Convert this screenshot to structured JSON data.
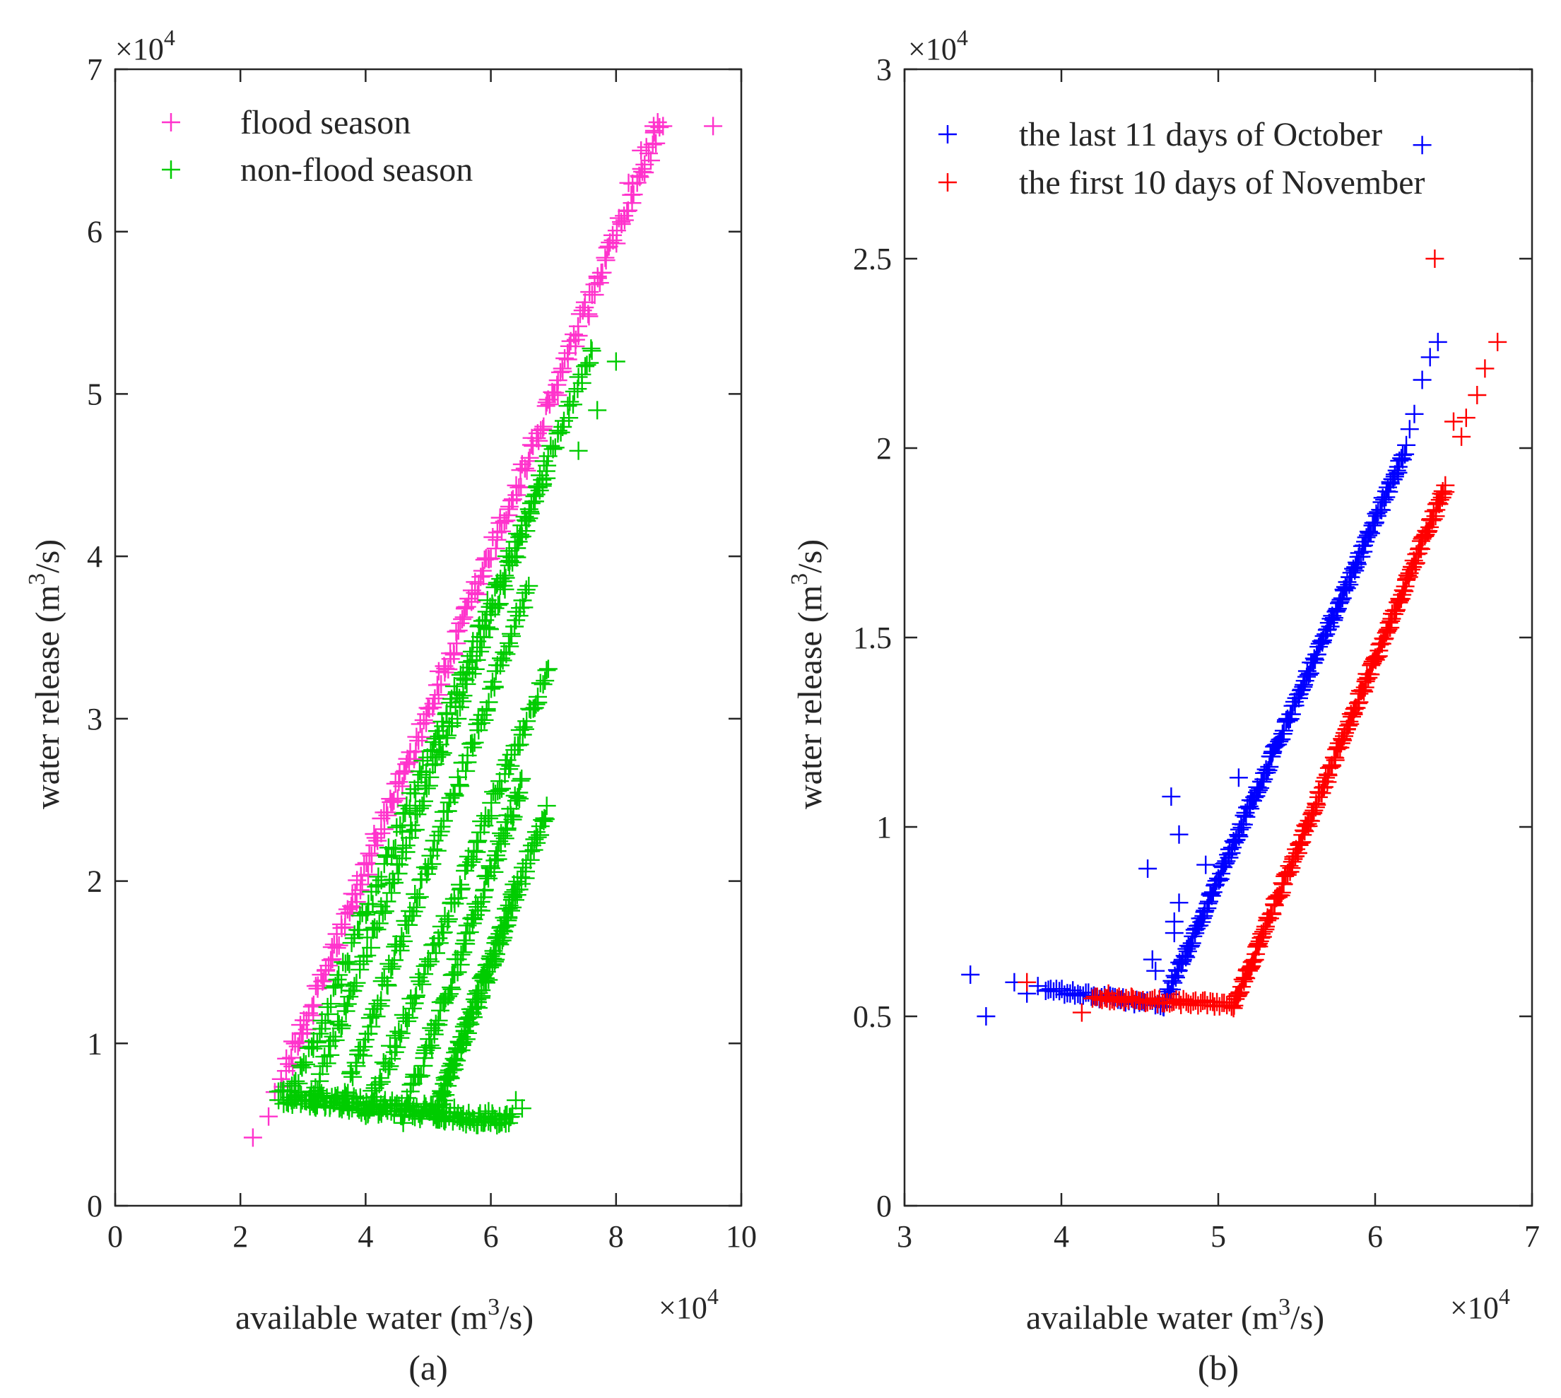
{
  "chart_data": [
    {
      "id": "a",
      "type": "scatter",
      "caption": "(a)",
      "xlabel": "available water (m",
      "xlabel_sup": "3",
      "xlabel_tail": "/s)",
      "ylabel": "water release (m",
      "ylabel_sup": "3",
      "ylabel_tail": "/s)",
      "x_multiplier": "×10",
      "x_multiplier_exp": "4",
      "y_multiplier": "×10",
      "y_multiplier_exp": "4",
      "xlim": [
        0,
        10
      ],
      "ylim": [
        0,
        7
      ],
      "xticks": [
        0,
        2,
        4,
        6,
        8,
        10
      ],
      "yticks": [
        0,
        1,
        2,
        3,
        4,
        5,
        6,
        7
      ],
      "xtick_labels": [
        "0",
        "2",
        "4",
        "6",
        "8",
        "10"
      ],
      "ytick_labels": [
        "0",
        "1",
        "2",
        "3",
        "4",
        "5",
        "6",
        "7"
      ],
      "legend_position": "top-left",
      "series": [
        {
          "name": "flood season",
          "color": "#ff33cc",
          "marker": "plus",
          "segments": [
            {
              "x": [
                2.7,
                8.7
              ],
              "y": [
                0.8,
                6.65
              ],
              "n": 240,
              "spread": 0.07
            }
          ],
          "points": [
            [
              2.2,
              0.42
            ],
            [
              2.45,
              0.55
            ],
            [
              2.55,
              0.7
            ],
            [
              2.65,
              0.78
            ],
            [
              8.6,
              6.65
            ],
            [
              8.75,
              6.65
            ],
            [
              9.55,
              6.65
            ],
            [
              8.4,
              6.5
            ],
            [
              8.2,
              6.3
            ]
          ]
        },
        {
          "name": "non-flood season",
          "color": "#00cc00",
          "marker": "plus",
          "segments": [
            {
              "x": [
                2.8,
                7.6
              ],
              "y": [
                0.65,
                5.25
              ],
              "n": 150,
              "spread": 0.06
            },
            {
              "x": [
                3.1,
                6.9
              ],
              "y": [
                0.62,
                4.55
              ],
              "n": 130,
              "spread": 0.06
            },
            {
              "x": [
                3.6,
                6.6
              ],
              "y": [
                0.6,
                3.8
              ],
              "n": 120,
              "spread": 0.06
            },
            {
              "x": [
                4.0,
                6.9
              ],
              "y": [
                0.55,
                3.3
              ],
              "n": 110,
              "spread": 0.06
            },
            {
              "x": [
                4.6,
                6.5
              ],
              "y": [
                0.55,
                2.6
              ],
              "n": 100,
              "spread": 0.06
            },
            {
              "x": [
                5.1,
                6.9
              ],
              "y": [
                0.55,
                2.45
              ],
              "n": 90,
              "spread": 0.06
            },
            {
              "x": [
                5.1,
                6.4
              ],
              "y": [
                0.55,
                1.95
              ],
              "n": 70,
              "spread": 0.05
            },
            {
              "x": [
                2.6,
                6.35
              ],
              "y": [
                0.68,
                0.52
              ],
              "n": 180,
              "spread": 0.05
            }
          ],
          "points": [
            [
              8.0,
              5.2
            ],
            [
              7.6,
              5.28
            ],
            [
              7.7,
              4.9
            ],
            [
              7.4,
              4.65
            ],
            [
              6.5,
              0.6
            ],
            [
              6.4,
              0.65
            ]
          ]
        }
      ]
    },
    {
      "id": "b",
      "type": "scatter",
      "caption": "(b)",
      "xlabel": "available water (m",
      "xlabel_sup": "3",
      "xlabel_tail": "/s)",
      "ylabel": "water release (m",
      "ylabel_sup": "3",
      "ylabel_tail": "/s)",
      "x_multiplier": "×10",
      "x_multiplier_exp": "4",
      "y_multiplier": "×10",
      "y_multiplier_exp": "4",
      "xlim": [
        3,
        7
      ],
      "ylim": [
        0,
        3
      ],
      "xticks": [
        3,
        4,
        5,
        6,
        7
      ],
      "yticks": [
        0,
        0.5,
        1,
        1.5,
        2,
        2.5,
        3
      ],
      "xtick_labels": [
        "3",
        "4",
        "5",
        "6",
        "7"
      ],
      "ytick_labels": [
        "0",
        "0.5",
        "1",
        "1.5",
        "2",
        "2.5",
        "3"
      ],
      "legend_position": "top-left",
      "series": [
        {
          "name": "the last 11 days of October",
          "color": "#0000ff",
          "marker": "plus",
          "segments": [
            {
              "x": [
                3.9,
                4.65
              ],
              "y": [
                0.57,
                0.53
              ],
              "n": 45,
              "spread": 0.008
            },
            {
              "x": [
                4.65,
                6.2
              ],
              "y": [
                0.53,
                2.0
              ],
              "n": 220,
              "spread": 0.012
            }
          ],
          "points": [
            [
              3.42,
              0.61
            ],
            [
              3.52,
              0.5
            ],
            [
              3.7,
              0.59
            ],
            [
              3.78,
              0.56
            ],
            [
              3.85,
              0.58
            ],
            [
              4.55,
              0.89
            ],
            [
              4.7,
              1.08
            ],
            [
              4.75,
              0.98
            ],
            [
              4.58,
              0.65
            ],
            [
              4.6,
              0.62
            ],
            [
              4.72,
              0.72
            ],
            [
              4.75,
              0.8
            ],
            [
              4.72,
              0.75
            ],
            [
              4.92,
              0.9
            ],
            [
              5.13,
              1.13
            ],
            [
              6.22,
              2.05
            ],
            [
              6.25,
              2.09
            ],
            [
              6.3,
              2.18
            ],
            [
              6.35,
              2.24
            ],
            [
              6.4,
              2.28
            ],
            [
              6.3,
              2.8
            ]
          ]
        },
        {
          "name": "the first 10 days of November",
          "color": "#ff0000",
          "marker": "plus",
          "segments": [
            {
              "x": [
                4.2,
                5.1
              ],
              "y": [
                0.55,
                0.53
              ],
              "n": 60,
              "spread": 0.008
            },
            {
              "x": [
                5.1,
                6.45
              ],
              "y": [
                0.53,
                1.9
              ],
              "n": 220,
              "spread": 0.012
            }
          ],
          "points": [
            [
              3.78,
              0.59
            ],
            [
              4.13,
              0.51
            ],
            [
              4.3,
              0.56
            ],
            [
              4.45,
              0.55
            ],
            [
              6.38,
              2.5
            ],
            [
              6.5,
              2.07
            ],
            [
              6.55,
              2.03
            ],
            [
              6.58,
              2.08
            ],
            [
              6.65,
              2.14
            ],
            [
              6.7,
              2.21
            ],
            [
              6.78,
              2.28
            ]
          ]
        }
      ]
    }
  ]
}
